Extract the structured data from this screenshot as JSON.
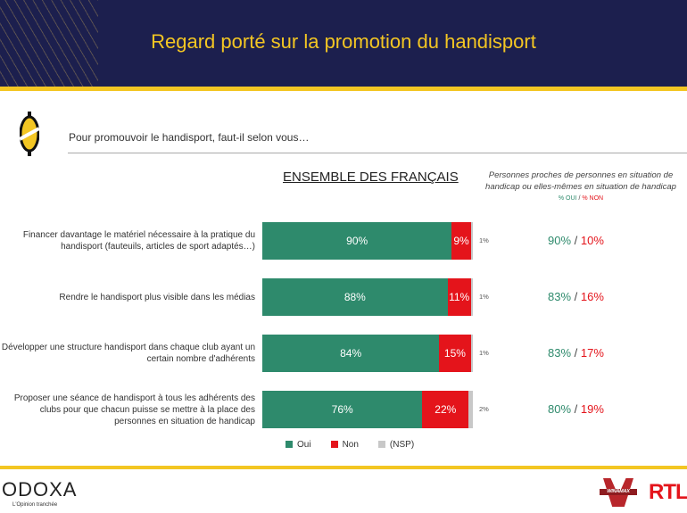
{
  "header": {
    "title": "Regard porté sur la promotion du handisport"
  },
  "question": "Pour promouvoir le handisport, faut-il selon vous…",
  "chart_data": {
    "type": "bar",
    "stacked": true,
    "orientation": "horizontal",
    "title": "ENSEMBLE DES FRANÇAIS",
    "categories": [
      "Financer davantage le matériel nécessaire à la pratique du handisport (fauteuils, articles de sport adaptés…)",
      "Rendre le handisport plus visible dans les médias",
      "Développer une structure handisport dans chaque club ayant un certain nombre d'adhérents",
      "Proposer une séance de handisport à tous les adhérents des clubs pour que chacun puisse se mettre à la place des personnes en situation de handicap"
    ],
    "series": [
      {
        "name": "Oui",
        "color": "#2e8a6c",
        "values": [
          90,
          88,
          84,
          76
        ]
      },
      {
        "name": "Non",
        "color": "#e4141b",
        "values": [
          9,
          11,
          15,
          22
        ]
      },
      {
        "name": "(NSP)",
        "color": "#c8c8c8",
        "values": [
          1,
          1,
          1,
          2
        ]
      }
    ],
    "xlim": [
      0,
      100
    ],
    "legend": "bottom"
  },
  "subgroup": {
    "title": "Personnes proches de personnes en situation de handicap ou elles-mêmes en situation de handicap",
    "legend_oui": "% OUI",
    "legend_sep": "/",
    "legend_non": "% NON",
    "oui": [
      "90%",
      "83%",
      "83%",
      "80%"
    ],
    "non": [
      "10%",
      "16%",
      "17%",
      "19%"
    ]
  },
  "footer": {
    "brand": "ODOXA",
    "tagline": "L'Opinion tranchée",
    "partner1": "WINAMAX",
    "partner2": "RTL"
  }
}
